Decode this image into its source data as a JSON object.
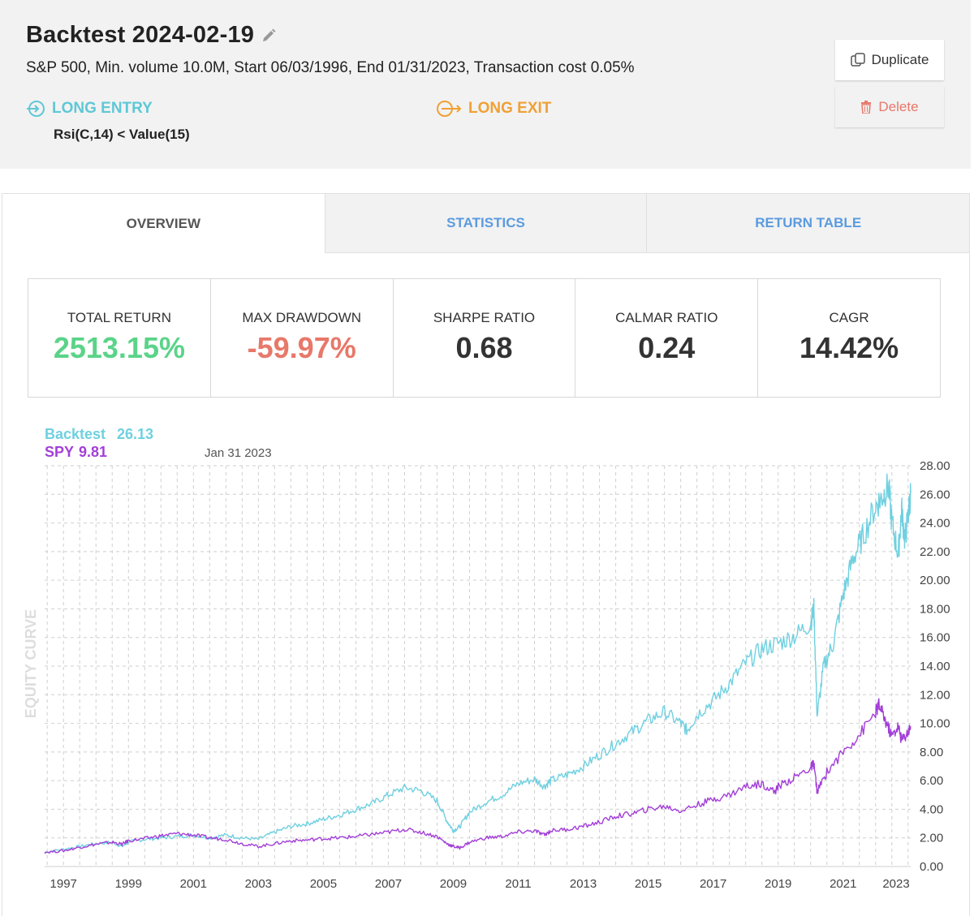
{
  "header": {
    "title": "Backtest 2024-02-19",
    "subtitle": "S&P 500, Min. volume 10.0M, Start 06/03/1996, End 01/31/2023, Transaction cost 0.05%",
    "entry_label": "LONG ENTRY",
    "exit_label": "LONG EXIT",
    "entry_rule": "Rsi(C,14) < Value(15)",
    "duplicate_label": "Duplicate",
    "delete_label": "Delete"
  },
  "tabs": [
    {
      "label": "OVERVIEW",
      "active": true
    },
    {
      "label": "STATISTICS",
      "active": false
    },
    {
      "label": "RETURN TABLE",
      "active": false
    }
  ],
  "stats": [
    {
      "label": "TOTAL RETURN",
      "value": "2513.15%"
    },
    {
      "label": "MAX DRAWDOWN",
      "value": "-59.97%"
    },
    {
      "label": "SHARPE RATIO",
      "value": "0.68"
    },
    {
      "label": "CALMAR RATIO",
      "value": "0.24"
    },
    {
      "label": "CAGR",
      "value": "14.42%"
    }
  ],
  "colors": {
    "backtest": "#6fd0e0",
    "spy": "#a33fd8",
    "positive": "#5bd48a",
    "negative": "#e8786a",
    "entry": "#5ec8d6",
    "exit": "#f0a035",
    "tab_link": "#5a9be0"
  },
  "chart_data": {
    "type": "line",
    "legend": [
      {
        "name": "Backtest",
        "last_value": "26.13"
      },
      {
        "name": "SPY",
        "last_value": "9.81"
      }
    ],
    "date_label": "Jan 31 2023",
    "ylabel": "EQUITY CURVE",
    "ylim": [
      0,
      28
    ],
    "y_ticks": [
      "0.00",
      "2.00",
      "4.00",
      "6.00",
      "8.00",
      "10.00",
      "12.00",
      "14.00",
      "16.00",
      "18.00",
      "20.00",
      "22.00",
      "24.00",
      "26.00",
      "28.00"
    ],
    "x_ticks": [
      "1997",
      "1999",
      "2001",
      "2003",
      "2005",
      "2007",
      "2009",
      "2011",
      "2013",
      "2015",
      "2017",
      "2019",
      "2021",
      "2023"
    ],
    "xlim": [
      1996.42,
      2023.08
    ],
    "series": [
      {
        "name": "Backtest",
        "points": [
          [
            1996.42,
            1.0
          ],
          [
            1997.0,
            1.2
          ],
          [
            1997.5,
            1.4
          ],
          [
            1998.0,
            1.6
          ],
          [
            1998.5,
            1.7
          ],
          [
            1998.8,
            1.4
          ],
          [
            1999.0,
            1.7
          ],
          [
            1999.5,
            1.9
          ],
          [
            2000.0,
            2.0
          ],
          [
            2000.5,
            2.1
          ],
          [
            2001.0,
            2.2
          ],
          [
            2001.5,
            2.0
          ],
          [
            2002.0,
            2.2
          ],
          [
            2002.5,
            2.0
          ],
          [
            2003.0,
            1.9
          ],
          [
            2003.5,
            2.4
          ],
          [
            2004.0,
            2.8
          ],
          [
            2004.5,
            3.0
          ],
          [
            2005.0,
            3.3
          ],
          [
            2005.5,
            3.6
          ],
          [
            2006.0,
            4.0
          ],
          [
            2006.5,
            4.4
          ],
          [
            2007.0,
            5.0
          ],
          [
            2007.5,
            5.5
          ],
          [
            2008.0,
            5.3
          ],
          [
            2008.5,
            4.6
          ],
          [
            2008.8,
            3.2
          ],
          [
            2009.0,
            2.5
          ],
          [
            2009.2,
            2.8
          ],
          [
            2009.5,
            3.8
          ],
          [
            2010.0,
            4.5
          ],
          [
            2010.5,
            5.0
          ],
          [
            2011.0,
            5.8
          ],
          [
            2011.5,
            6.1
          ],
          [
            2011.8,
            5.6
          ],
          [
            2012.0,
            6.0
          ],
          [
            2012.5,
            6.4
          ],
          [
            2013.0,
            7.0
          ],
          [
            2013.5,
            7.8
          ],
          [
            2014.0,
            8.6
          ],
          [
            2014.5,
            9.4
          ],
          [
            2015.0,
            10.2
          ],
          [
            2015.5,
            10.8
          ],
          [
            2016.0,
            10.0
          ],
          [
            2016.2,
            9.5
          ],
          [
            2016.5,
            10.6
          ],
          [
            2017.0,
            11.6
          ],
          [
            2017.5,
            12.8
          ],
          [
            2018.0,
            14.2
          ],
          [
            2018.5,
            15.2
          ],
          [
            2019.0,
            15.6
          ],
          [
            2019.5,
            16.1
          ],
          [
            2020.0,
            17.0
          ],
          [
            2020.1,
            18.0
          ],
          [
            2020.2,
            10.5
          ],
          [
            2020.4,
            14.0
          ],
          [
            2020.7,
            15.6
          ],
          [
            2021.0,
            19.0
          ],
          [
            2021.3,
            21.5
          ],
          [
            2021.6,
            23.0
          ],
          [
            2022.0,
            25.2
          ],
          [
            2022.2,
            25.8
          ],
          [
            2022.4,
            26.6
          ],
          [
            2022.5,
            24.0
          ],
          [
            2022.7,
            21.8
          ],
          [
            2022.8,
            25.0
          ],
          [
            2022.9,
            22.8
          ],
          [
            2023.0,
            24.5
          ],
          [
            2023.08,
            26.1
          ]
        ]
      },
      {
        "name": "SPY",
        "points": [
          [
            1996.42,
            1.0
          ],
          [
            1997.0,
            1.1
          ],
          [
            1997.5,
            1.35
          ],
          [
            1998.0,
            1.55
          ],
          [
            1998.5,
            1.7
          ],
          [
            1998.8,
            1.55
          ],
          [
            1999.0,
            1.8
          ],
          [
            1999.5,
            1.95
          ],
          [
            2000.0,
            2.15
          ],
          [
            2000.5,
            2.3
          ],
          [
            2001.0,
            2.2
          ],
          [
            2001.5,
            2.0
          ],
          [
            2002.0,
            1.9
          ],
          [
            2002.5,
            1.6
          ],
          [
            2003.0,
            1.4
          ],
          [
            2003.5,
            1.6
          ],
          [
            2004.0,
            1.8
          ],
          [
            2004.5,
            1.85
          ],
          [
            2005.0,
            1.95
          ],
          [
            2005.5,
            2.0
          ],
          [
            2006.0,
            2.1
          ],
          [
            2006.5,
            2.25
          ],
          [
            2007.0,
            2.4
          ],
          [
            2007.5,
            2.6
          ],
          [
            2008.0,
            2.4
          ],
          [
            2008.5,
            2.1
          ],
          [
            2008.8,
            1.6
          ],
          [
            2009.0,
            1.4
          ],
          [
            2009.2,
            1.3
          ],
          [
            2009.5,
            1.7
          ],
          [
            2010.0,
            2.0
          ],
          [
            2010.5,
            2.1
          ],
          [
            2011.0,
            2.4
          ],
          [
            2011.5,
            2.5
          ],
          [
            2011.8,
            2.2
          ],
          [
            2012.0,
            2.5
          ],
          [
            2012.5,
            2.6
          ],
          [
            2013.0,
            2.8
          ],
          [
            2013.5,
            3.1
          ],
          [
            2014.0,
            3.5
          ],
          [
            2014.5,
            3.7
          ],
          [
            2015.0,
            4.0
          ],
          [
            2015.5,
            4.2
          ],
          [
            2016.0,
            3.9
          ],
          [
            2016.5,
            4.3
          ],
          [
            2017.0,
            4.7
          ],
          [
            2017.5,
            5.0
          ],
          [
            2018.0,
            5.6
          ],
          [
            2018.5,
            5.8
          ],
          [
            2018.9,
            5.2
          ],
          [
            2019.0,
            5.6
          ],
          [
            2019.5,
            6.2
          ],
          [
            2020.0,
            6.9
          ],
          [
            2020.1,
            7.2
          ],
          [
            2020.2,
            5.2
          ],
          [
            2020.5,
            6.6
          ],
          [
            2021.0,
            8.0
          ],
          [
            2021.5,
            9.2
          ],
          [
            2022.0,
            10.8
          ],
          [
            2022.1,
            11.3
          ],
          [
            2022.3,
            10.2
          ],
          [
            2022.5,
            9.1
          ],
          [
            2022.7,
            9.8
          ],
          [
            2022.8,
            8.8
          ],
          [
            2023.0,
            9.4
          ],
          [
            2023.08,
            9.8
          ]
        ]
      }
    ]
  }
}
